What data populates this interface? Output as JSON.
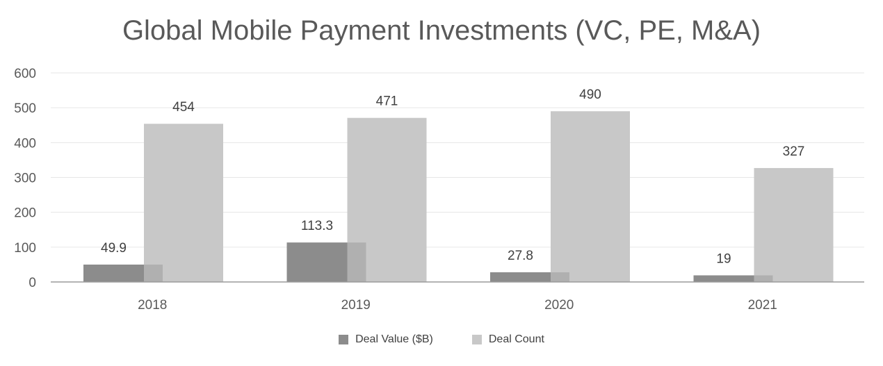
{
  "chart_data": {
    "type": "bar",
    "title": "Global Mobile Payment Investments (VC, PE, M&A)",
    "categories": [
      "2018",
      "2019",
      "2020",
      "2021"
    ],
    "series": [
      {
        "name": "Deal Value ($B)",
        "values": [
          49.9,
          113.3,
          27.8,
          19
        ],
        "color": "#8c8c8c"
      },
      {
        "name": "Deal Count",
        "values": [
          454,
          471,
          490,
          327
        ],
        "color": "#c8c8c8"
      }
    ],
    "data_labels": {
      "Deal Value ($B)": [
        "49.9",
        "113.3",
        "27.8",
        "19"
      ],
      "Deal Count": [
        "454",
        "471",
        "490",
        "327"
      ]
    },
    "yticks": [
      "0",
      "100",
      "200",
      "300",
      "400",
      "500",
      "600"
    ],
    "ylim": [
      0,
      600
    ],
    "xlabel": "",
    "ylabel": "",
    "grid": true,
    "legend_position": "bottom"
  }
}
